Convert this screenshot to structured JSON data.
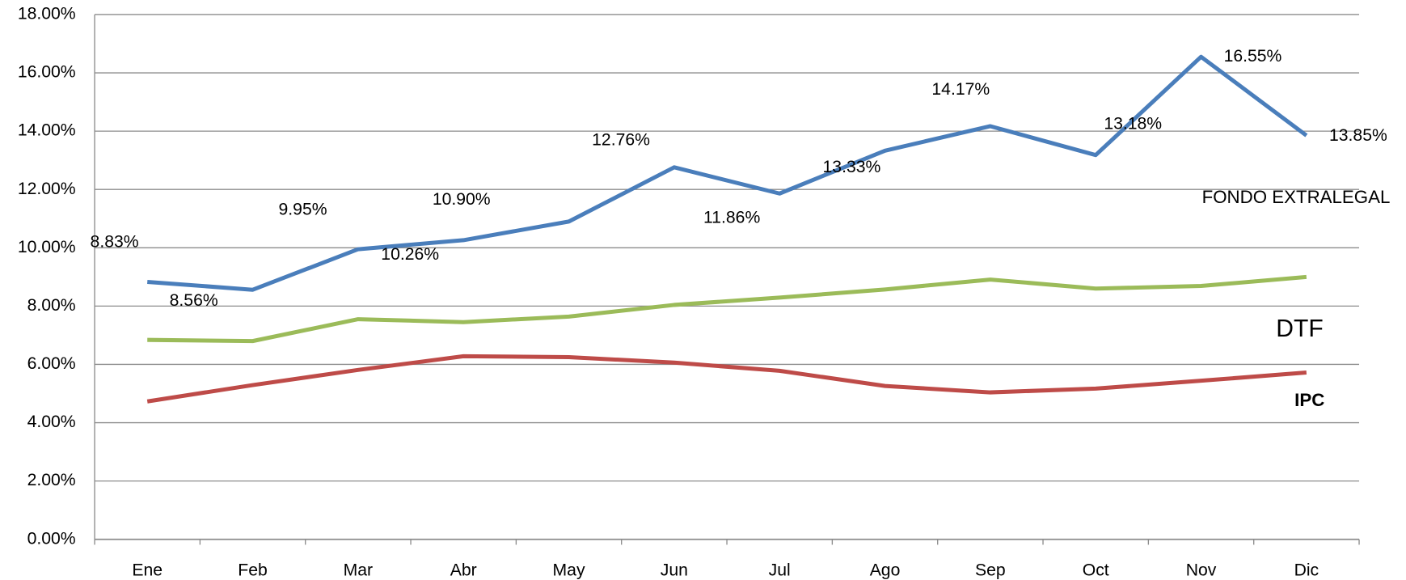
{
  "chart_data": {
    "type": "line",
    "categories": [
      "Ene",
      "Feb",
      "Mar",
      "Abr",
      "May",
      "Jun",
      "Jul",
      "Ago",
      "Sep",
      "Oct",
      "Nov",
      "Dic"
    ],
    "series": [
      {
        "name": "FONDO EXTRALEGAL",
        "color": "#4a7ebb",
        "values": [
          8.83,
          8.56,
          9.95,
          10.26,
          10.9,
          12.76,
          11.86,
          13.33,
          14.17,
          13.18,
          16.55,
          13.85
        ],
        "value_labels": [
          "8.83%",
          "8.56%",
          "9.95%",
          "10.26%",
          "10.90%",
          "12.76%",
          "11.86%",
          "13.33%",
          "14.17%",
          "13.18%",
          "16.55%",
          "13.85%"
        ]
      },
      {
        "name": "DTF",
        "color": "#9bbb59",
        "values": [
          6.84,
          6.8,
          7.55,
          7.45,
          7.64,
          8.04,
          8.29,
          8.57,
          8.91,
          8.6,
          8.69,
          9.0
        ]
      },
      {
        "name": "IPC",
        "color": "#be4b48",
        "values": [
          4.73,
          5.29,
          5.81,
          6.28,
          6.25,
          6.06,
          5.78,
          5.26,
          5.04,
          5.17,
          5.44,
          5.72
        ]
      }
    ],
    "ylim": [
      0,
      18
    ],
    "yticks": [
      {
        "value": 0,
        "label": "0.00%"
      },
      {
        "value": 2,
        "label": "2.00%"
      },
      {
        "value": 4,
        "label": "4.00%"
      },
      {
        "value": 6,
        "label": "6.00%"
      },
      {
        "value": 8,
        "label": "8.00%"
      },
      {
        "value": 10,
        "label": "10.00%"
      },
      {
        "value": 12,
        "label": "12.00%"
      },
      {
        "value": 14,
        "label": "14.00%"
      },
      {
        "value": 16,
        "label": "16.00%"
      },
      {
        "value": 18,
        "label": "18.00%"
      }
    ],
    "grid": true
  }
}
